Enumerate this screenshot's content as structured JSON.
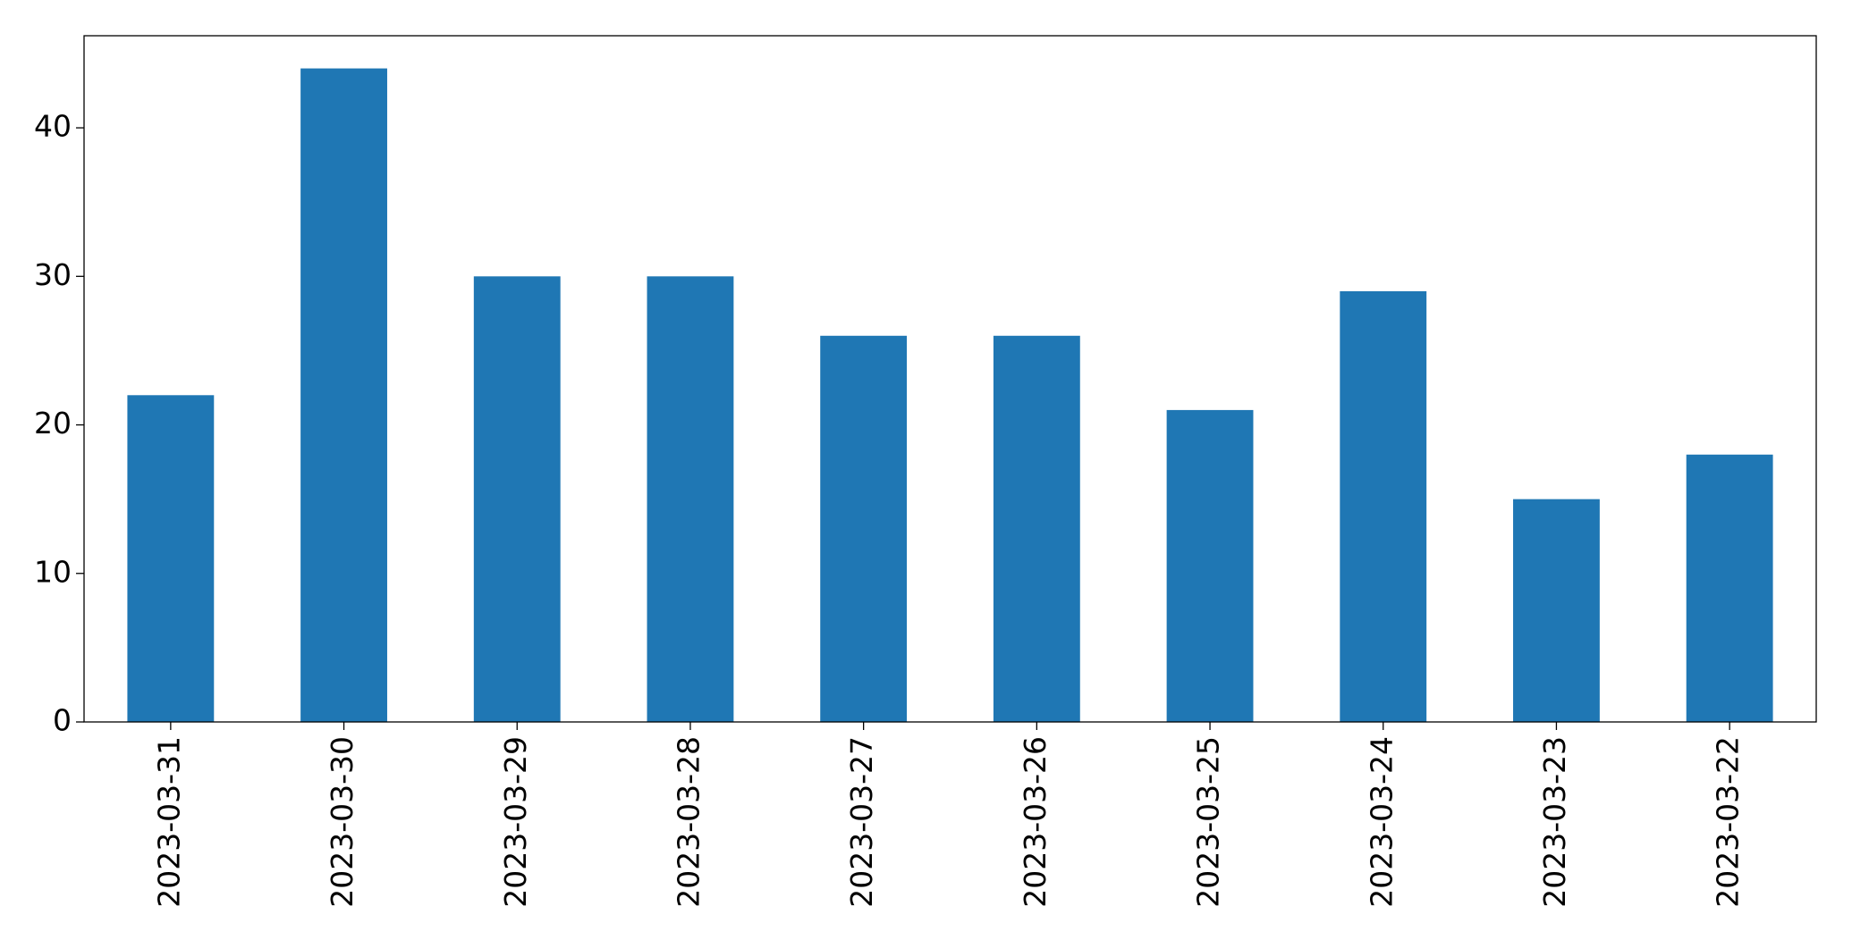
{
  "chart_data": {
    "type": "bar",
    "categories": [
      "2023-03-31",
      "2023-03-30",
      "2023-03-29",
      "2023-03-28",
      "2023-03-27",
      "2023-03-26",
      "2023-03-25",
      "2023-03-24",
      "2023-03-23",
      "2023-03-22"
    ],
    "values": [
      22,
      44,
      30,
      30,
      26,
      26,
      21,
      29,
      15,
      18
    ],
    "color": "#1f77b4",
    "ylim": [
      0,
      46.2
    ],
    "yticks": [
      0,
      10,
      20,
      30,
      40
    ],
    "grid": false
  }
}
